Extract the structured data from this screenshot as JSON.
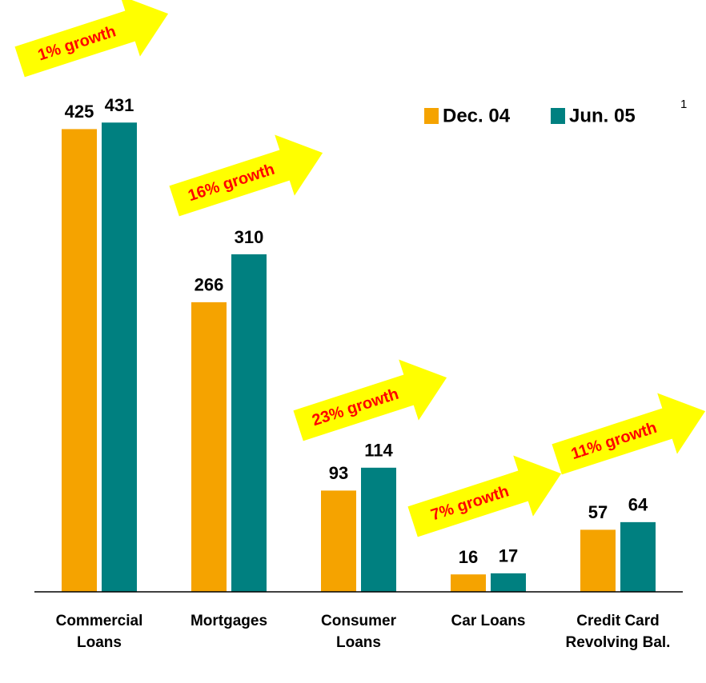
{
  "chart_data": {
    "type": "bar",
    "categories": [
      "Commercial Loans",
      "Mortgages",
      "Consumer Loans",
      "Car Loans",
      "Credit Card Revolving Bal."
    ],
    "series": [
      {
        "name": "Dec. 04",
        "color": "#f5a300",
        "values": [
          425,
          266,
          93,
          16,
          57
        ]
      },
      {
        "name": "Jun. 05",
        "color": "#008080",
        "values": [
          431,
          310,
          114,
          17,
          64
        ]
      }
    ],
    "annotations": [
      "1% growth",
      "16% growth",
      "23% growth",
      "7% growth",
      "11% growth"
    ],
    "annotation_color": "#ffff00",
    "annotation_text_color": "#ff0000",
    "legend_note": "1",
    "ylim": [
      0,
      440
    ]
  }
}
